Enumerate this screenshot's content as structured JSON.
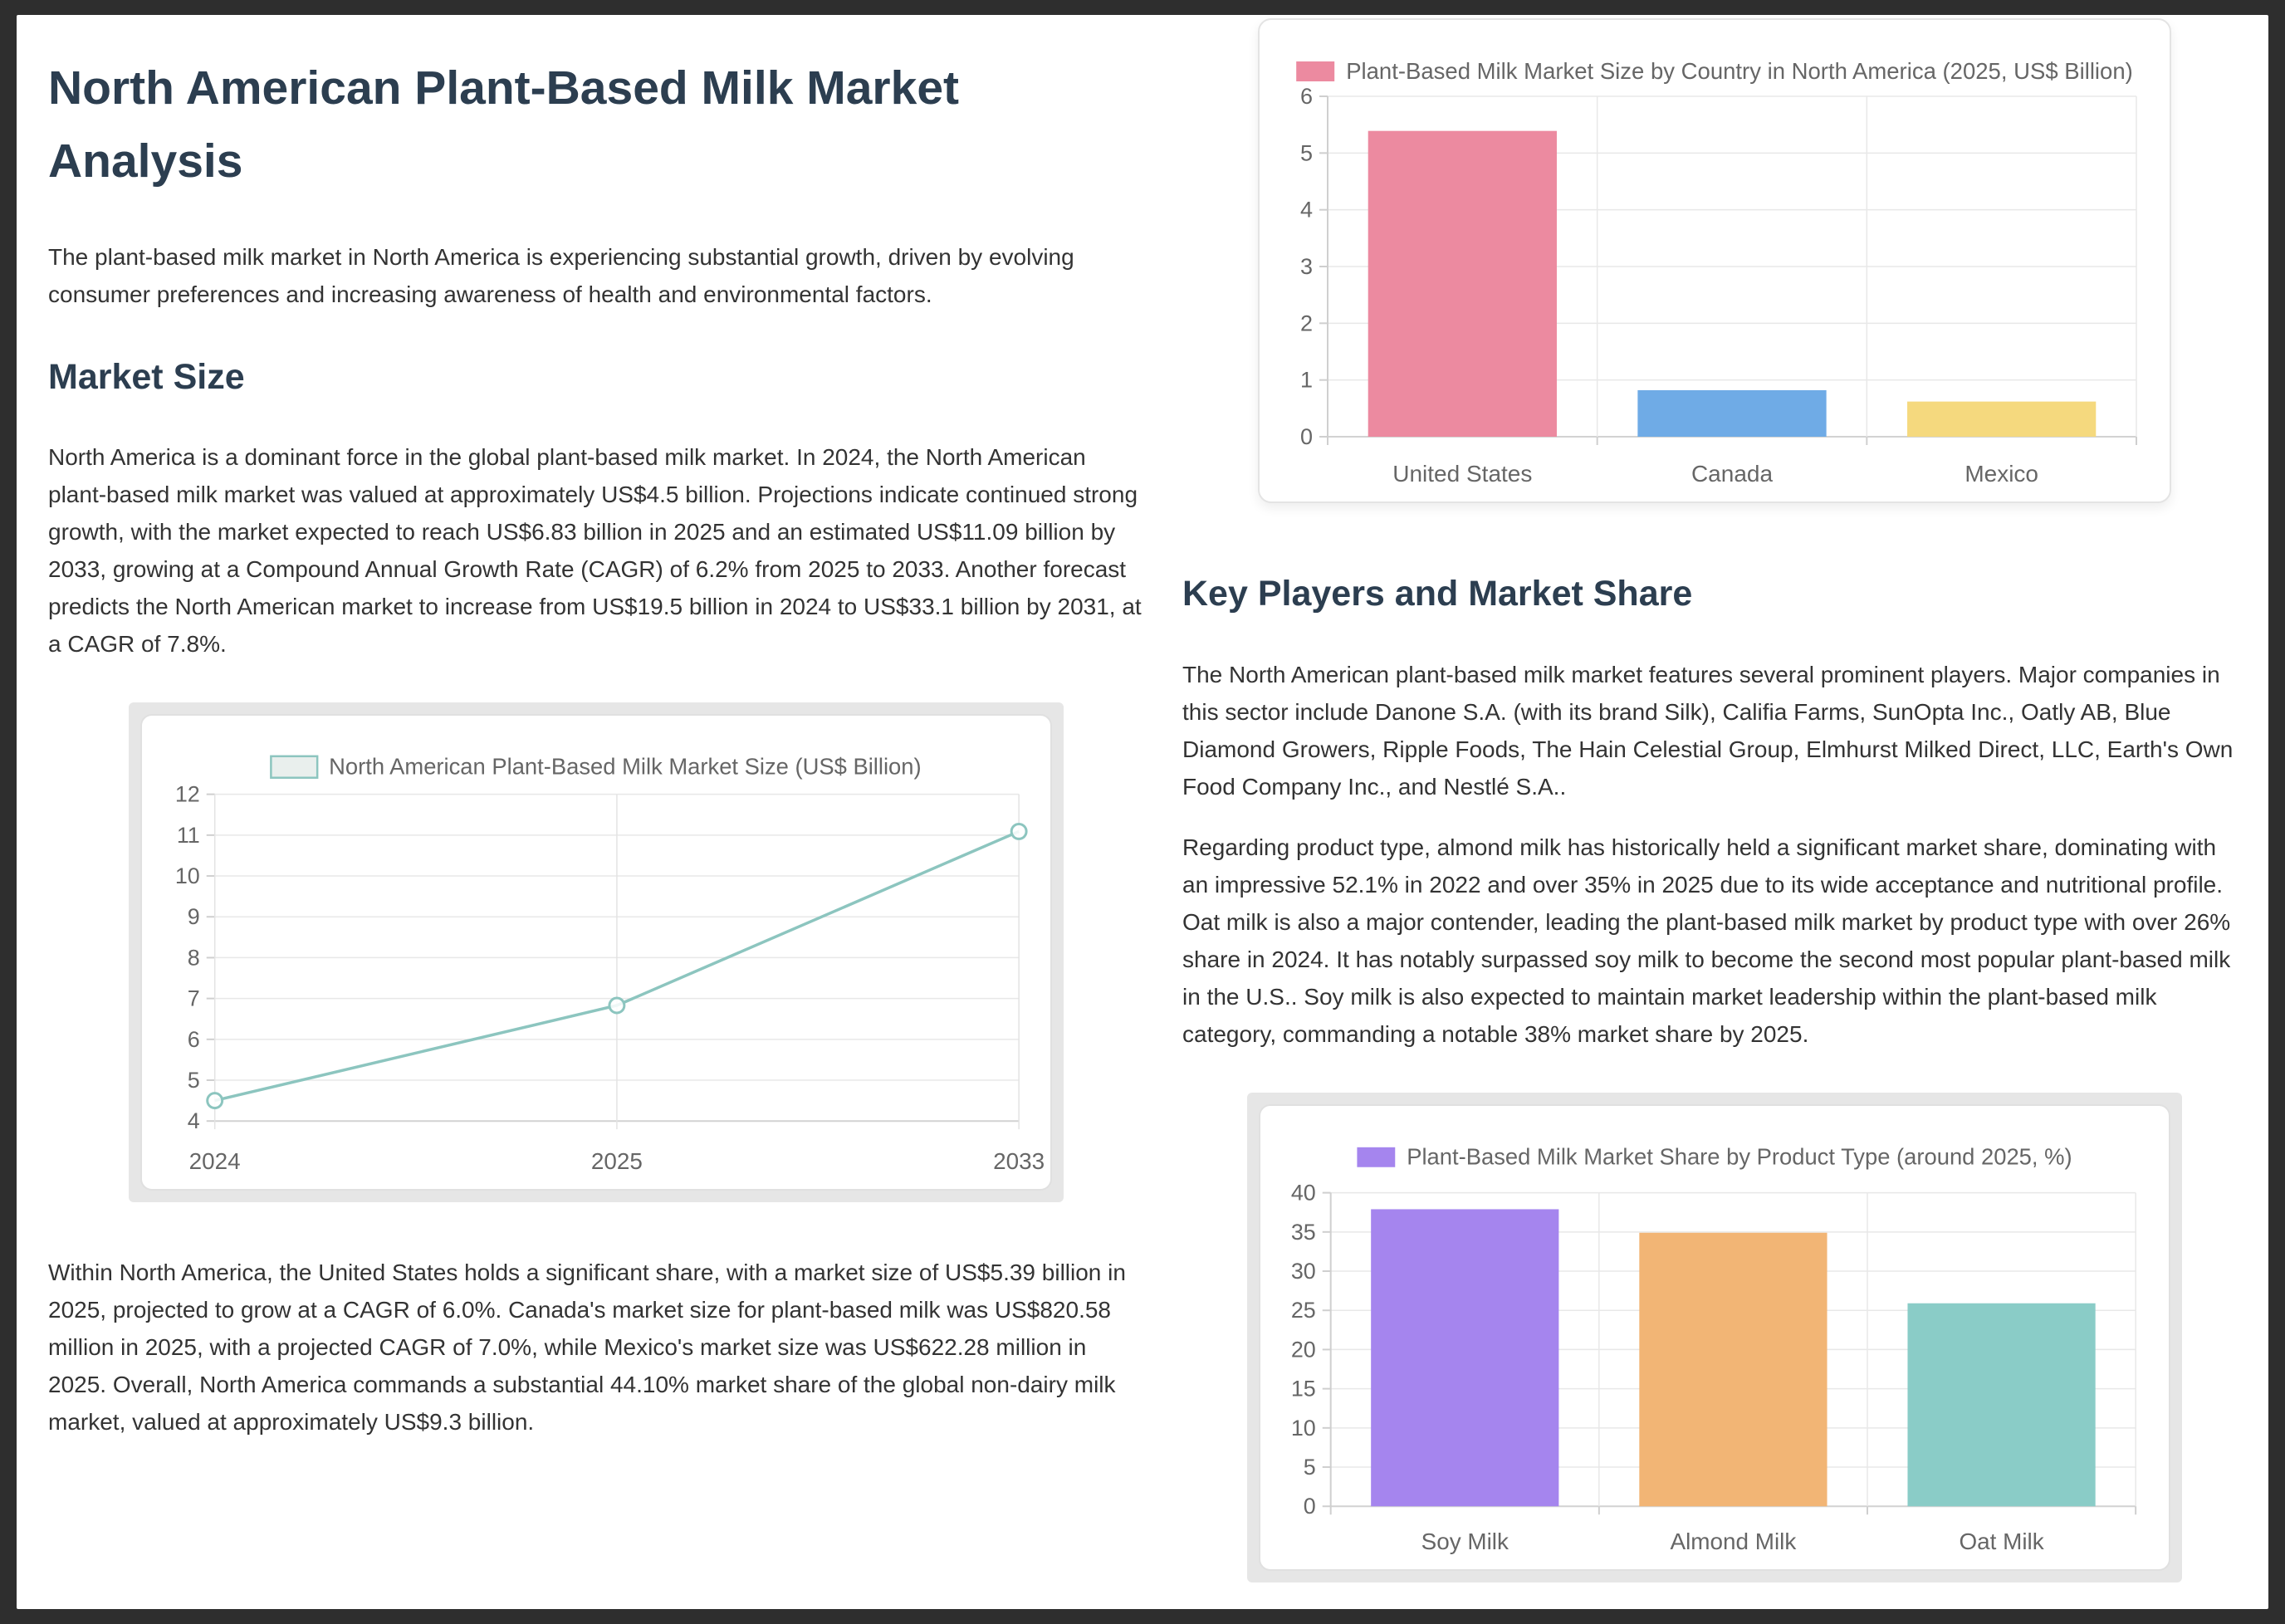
{
  "theme": {
    "frame_bg": "#2e2e2e",
    "page_bg": "#ffffff",
    "heading_color": "#2c3e50",
    "body_text_color": "#333333",
    "axis_text_color": "#666666",
    "gridline_color": "#e8e8e8",
    "axis_line_color": "#cfcfcf"
  },
  "article": {
    "title": "North American Plant-Based Milk Market Analysis",
    "intro": "The plant-based milk market in North America is experiencing substantial growth, driven by evolving consumer preferences and increasing awareness of health and environmental factors.",
    "market_size": {
      "heading": "Market Size",
      "overview": "North America is a dominant force in the global plant-based milk market. In 2024, the North American plant-based milk market was valued at approximately US$4.5 billion. Projections indicate continued strong growth, with the market expected to reach US$6.83 billion in 2025 and an estimated US$11.09 billion by 2033, growing at a Compound Annual Growth Rate (CAGR) of 6.2% from 2025 to 2033. Another forecast predicts the North American market to increase from US$19.5 billion in 2024 to US$33.1 billion by 2031, at a CAGR of 7.8%.",
      "country_breakdown": "Within North America, the United States holds a significant share, with a market size of US$5.39 billion in 2025, projected to grow at a CAGR of 6.0%. Canada's market size for plant-based milk was US$820.58 million in 2025, with a projected CAGR of 7.0%, while Mexico's market size was US$622.28 million in 2025. Overall, North America commands a substantial 44.10% market share of the global non-dairy milk market, valued at approximately US$9.3 billion."
    },
    "key_players": {
      "heading": "Key Players and Market Share",
      "companies": "The North American plant-based milk market features several prominent players. Major companies in this sector include Danone S.A. (with its brand Silk), Califia Farms, SunOpta Inc., Oatly AB, Blue Diamond Growers, Ripple Foods, The Hain Celestial Group, Elmhurst Milked Direct, LLC, Earth's Own Food Company Inc., and Nestlé S.A..",
      "product_type_share": "Regarding product type, almond milk has historically held a significant market share, dominating with an impressive 52.1% in 2022 and over 35% in 2025 due to its wide acceptance and nutritional profile. Oat milk is also a major contender, leading the plant-based milk market by product type with over 26% share in 2024. It has notably surpassed soy milk to become the second most popular plant-based milk in the U.S.. Soy milk is also expected to maintain market leadership within the plant-based milk category, commanding a notable 38% market share by 2025."
    }
  },
  "chart_data": [
    {
      "type": "line",
      "title": "North American Plant-Based Milk Market Size (US$ Billion)",
      "categories": [
        "2024",
        "2025",
        "2033"
      ],
      "values": [
        4.5,
        6.83,
        11.09
      ],
      "ylim": [
        4,
        12
      ],
      "ytick_step": 1,
      "grid": true,
      "legend_position": "top",
      "marker": "hollow-circle",
      "line_color": "#8cc5bf",
      "legend_fill": "#e9efed"
    },
    {
      "type": "bar",
      "title": "Plant-Based Milk Market Size by Country in North America (2025, US$ Billion)",
      "categories": [
        "United States",
        "Canada",
        "Mexico"
      ],
      "values": [
        5.39,
        0.82,
        0.62
      ],
      "ylim": [
        0,
        6
      ],
      "ytick_step": 1,
      "grid": true,
      "legend_position": "top",
      "colors": [
        "#ec8aa0",
        "#6fabe6",
        "#f5d97e"
      ]
    },
    {
      "type": "bar",
      "title": "Plant-Based Milk Market Share by Product Type (around 2025, %)",
      "categories": [
        "Soy Milk",
        "Almond Milk",
        "Oat Milk"
      ],
      "values": [
        37.9,
        34.9,
        25.9
      ],
      "ylim": [
        0,
        40
      ],
      "ytick_step": 5,
      "grid": true,
      "legend_position": "top",
      "colors": [
        "#a585ee",
        "#f2b575",
        "#8accc7"
      ]
    }
  ]
}
